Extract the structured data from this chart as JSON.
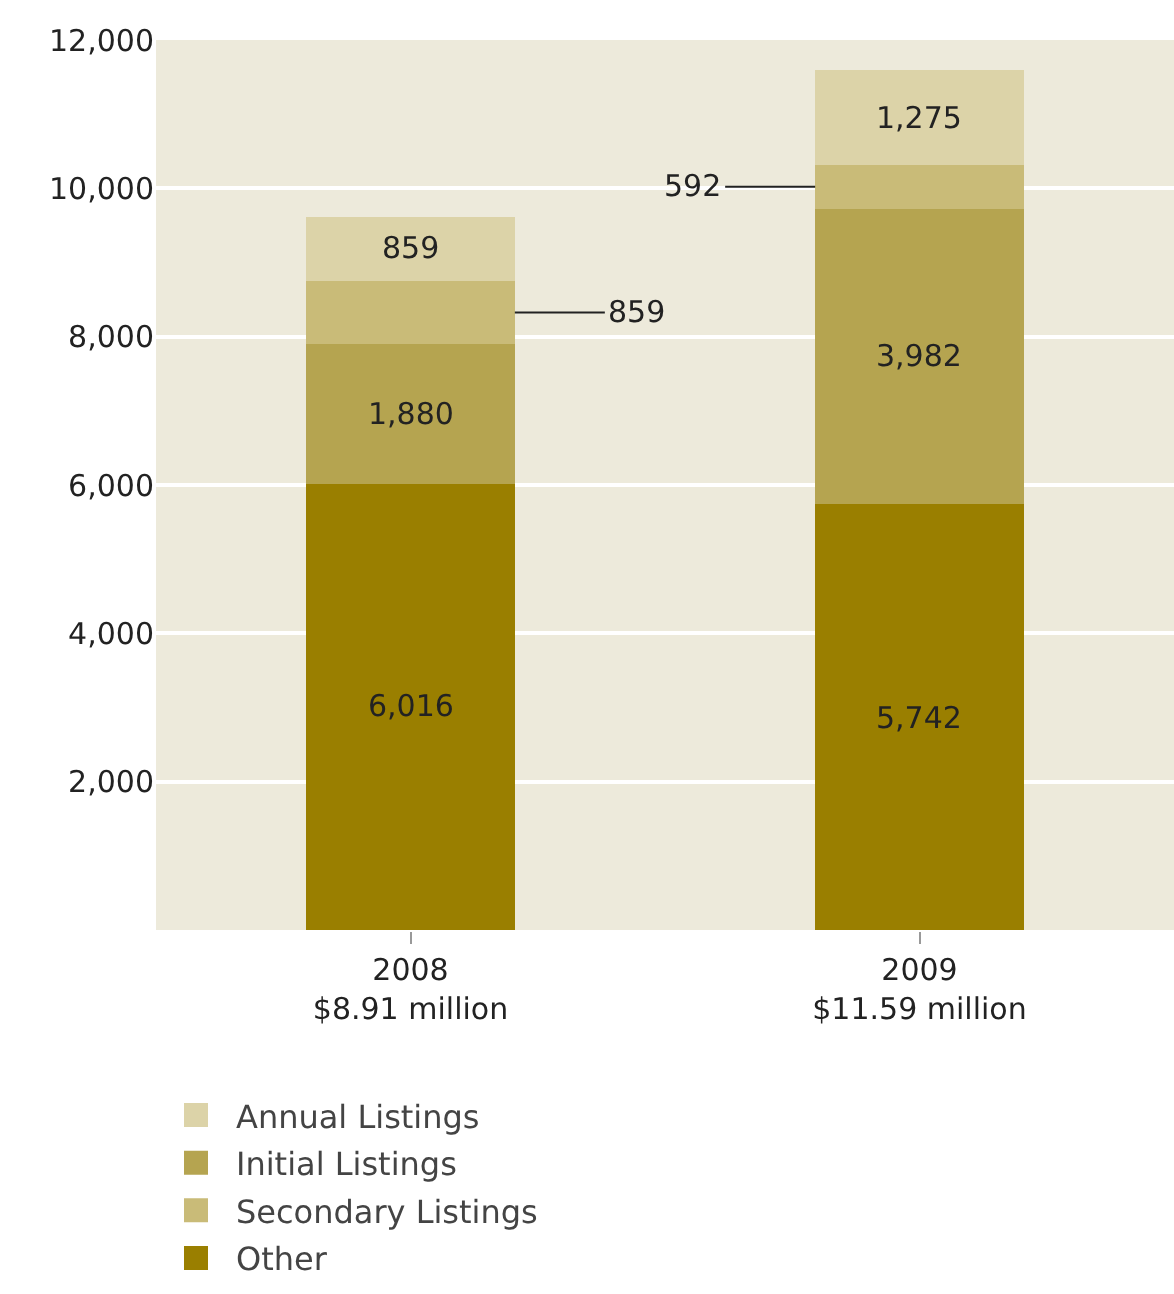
{
  "chart_data": {
    "type": "bar",
    "stacked": true,
    "categories": [
      "2008\n$8.91 million",
      "2009\n$11.59 million"
    ],
    "series": [
      {
        "name": "Other",
        "color": "#9a7f00",
        "values": [
          6016,
          5742
        ],
        "value_labels": [
          "6,016",
          "5,742"
        ]
      },
      {
        "name": "Initial Listings",
        "color": "#b5a450",
        "values": [
          1880,
          3982
        ],
        "value_labels": [
          "1,880",
          "3,982"
        ]
      },
      {
        "name": "Secondary Listings",
        "color": "#c9bb78",
        "values": [
          859,
          592
        ],
        "value_labels": [
          "859",
          "592"
        ]
      },
      {
        "name": "Annual Listings",
        "color": "#dcd3a8",
        "values": [
          859,
          1275
        ],
        "value_labels": [
          "859",
          "1,275"
        ]
      }
    ],
    "ylim": [
      0,
      12000
    ],
    "yticks": [
      {
        "value": 0,
        "label": null
      },
      {
        "value": 2000,
        "label": "2,000"
      },
      {
        "value": 4000,
        "label": "4,000"
      },
      {
        "value": 6000,
        "label": "6,000"
      },
      {
        "value": 8000,
        "label": "8,000"
      },
      {
        "value": 10000,
        "label": "10,000"
      },
      {
        "value": 12000,
        "label": "12,000"
      }
    ],
    "grid": "y",
    "legend": "bottom"
  }
}
